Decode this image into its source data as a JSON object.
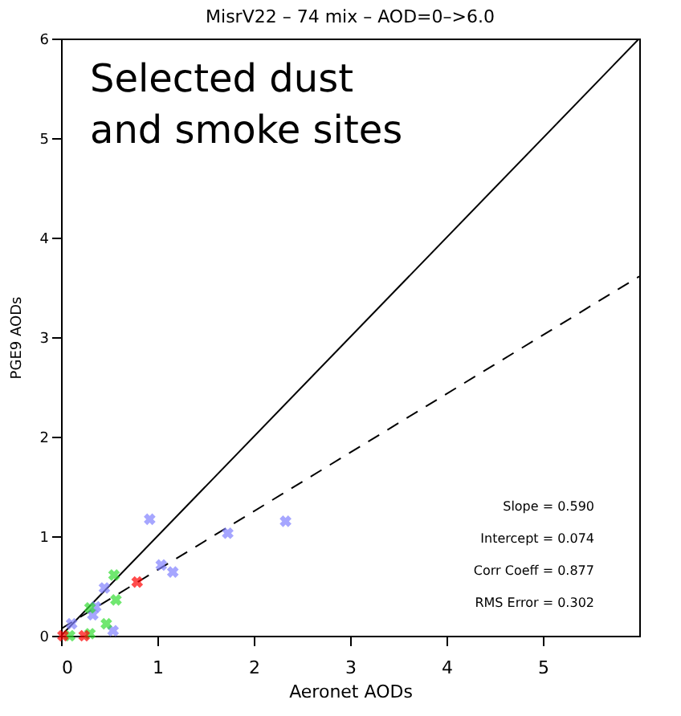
{
  "chart_data": {
    "type": "scatter",
    "title": "MisrV22 – 74 mix – AOD=0–>6.0",
    "xlabel": "Aeronet AODs",
    "ylabel": "PGE9 AODs",
    "xlim": [
      0,
      6
    ],
    "ylim": [
      0,
      6
    ],
    "xticks": [
      0,
      1,
      2,
      3,
      4,
      5
    ],
    "yticks": [
      0,
      1,
      2,
      3,
      4,
      5,
      6
    ],
    "grid": false,
    "marker": "cross",
    "series": [
      {
        "type": "line",
        "color": "#000000",
        "line_style": "solid",
        "marker": "none",
        "x": [
          0,
          6
        ],
        "values": [
          0,
          6
        ]
      },
      {
        "type": "line",
        "color": "#000000",
        "line_style": "dashed",
        "marker": "none",
        "x": [
          0,
          6
        ],
        "values": [
          0.07,
          3.61
        ]
      },
      {
        "color": "#8080ff",
        "x": [
          0.92,
          1.73,
          2.33,
          1.04,
          1.16,
          0.45,
          0.36,
          0.33,
          0.11,
          0.54
        ],
        "values": [
          1.17,
          1.03,
          1.15,
          0.71,
          0.64,
          0.48,
          0.29,
          0.21,
          0.12,
          0.05
        ]
      },
      {
        "color": "#33dd33",
        "x": [
          0.55,
          0.57,
          0.3,
          0.47,
          0.3,
          0.09
        ],
        "values": [
          0.61,
          0.36,
          0.28,
          0.12,
          0.02,
          0.0
        ]
      },
      {
        "color": "#ff0000",
        "x": [
          0.79,
          0.24,
          0.02
        ],
        "values": [
          0.54,
          0.0,
          0.0
        ]
      }
    ],
    "annotations": [
      "Selected dust\nand smoke sites",
      "Slope =  0.590",
      "Intercept =  0.074",
      "Corr Coeff = 0.877",
      "RMS Error = 0.302"
    ]
  }
}
